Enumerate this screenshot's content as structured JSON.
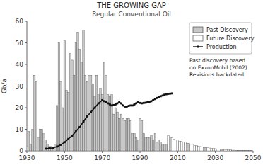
{
  "chart_data": {
    "type": "bar",
    "title": "THE GROWING GAP",
    "subtitle": "Regular Conventional Oil",
    "ylabel": "Gb/a",
    "annotation": "Past discovery based\non ExxonMobil (2002).\nRevisions backdated",
    "xlim": [
      1930,
      2050
    ],
    "ylim": [
      0,
      60
    ],
    "xticks": [
      1930,
      1950,
      1970,
      1990,
      2010,
      2030,
      2050
    ],
    "yticks": [
      0,
      10,
      20,
      30,
      40,
      50,
      60
    ],
    "legend": "upper right",
    "series": [
      {
        "name": "Past Discovery",
        "type": "bar",
        "color": "#c8c8c8",
        "x": [
          1930,
          1931,
          1932,
          1933,
          1934,
          1935,
          1936,
          1937,
          1938,
          1939,
          1940,
          1941,
          1942,
          1943,
          1944,
          1945,
          1946,
          1947,
          1948,
          1949,
          1950,
          1951,
          1952,
          1953,
          1954,
          1955,
          1956,
          1957,
          1958,
          1959,
          1960,
          1961,
          1962,
          1963,
          1964,
          1965,
          1966,
          1967,
          1968,
          1969,
          1970,
          1971,
          1972,
          1973,
          1974,
          1975,
          1976,
          1977,
          1978,
          1979,
          1980,
          1981,
          1982,
          1983,
          1984,
          1985,
          1986,
          1987,
          1988,
          1989,
          1990,
          1991,
          1992,
          1993,
          1994,
          1995,
          1996,
          1997,
          1998,
          1999,
          2000,
          2001,
          2002,
          2003,
          2004
        ],
        "values": [
          2,
          9,
          3,
          10,
          35,
          32,
          6,
          10,
          10,
          8,
          5,
          3,
          2,
          2,
          1,
          3,
          21,
          50,
          32,
          20,
          51,
          28,
          27,
          45,
          42,
          35,
          50,
          55,
          47,
          41,
          56,
          35,
          32,
          35,
          35,
          31,
          25,
          35,
          26,
          29,
          26,
          41,
          35,
          26,
          25,
          26,
          17,
          20,
          18,
          15,
          17,
          15,
          14,
          15,
          15,
          14,
          8,
          8,
          6,
          5,
          15,
          14,
          8,
          6,
          6,
          6,
          7,
          5,
          8,
          4,
          5,
          4,
          3,
          3,
          3
        ]
      },
      {
        "name": "Future Discovery",
        "type": "bar",
        "color": "#ffffff",
        "x": [
          2005,
          2006,
          2007,
          2008,
          2009,
          2010,
          2011,
          2012,
          2013,
          2014,
          2015,
          2016,
          2017,
          2018,
          2019,
          2020,
          2021,
          2022,
          2023,
          2024,
          2025,
          2026,
          2027,
          2028,
          2029,
          2030,
          2031,
          2032,
          2033,
          2034,
          2035,
          2036,
          2037,
          2038,
          2039,
          2040,
          2041,
          2042,
          2043,
          2044,
          2045,
          2046,
          2047,
          2048,
          2049
        ],
        "values": [
          7,
          6.5,
          6,
          5.5,
          5,
          5,
          4.5,
          4.5,
          4,
          4,
          3.5,
          3.5,
          3,
          3,
          2.5,
          2.5,
          2.2,
          2.0,
          1.8,
          1.6,
          1.5,
          1.4,
          1.3,
          1.2,
          1.1,
          1.0,
          0.9,
          0.8,
          0.7,
          0.6,
          0.5,
          0.5,
          0.4,
          0.4,
          0.3,
          0.3,
          0.2,
          0.2,
          0.2,
          0.1,
          0.1,
          0.1,
          0.1,
          0.1,
          0.1
        ]
      },
      {
        "name": "Production",
        "type": "line",
        "color": "#111111",
        "marker": "square",
        "x": [
          1940,
          1942,
          1944,
          1946,
          1948,
          1950,
          1952,
          1954,
          1956,
          1958,
          1960,
          1962,
          1964,
          1966,
          1968,
          1970,
          1971,
          1972,
          1973,
          1974,
          1975,
          1976,
          1977,
          1978,
          1979,
          1980,
          1981,
          1982,
          1983,
          1984,
          1985,
          1986,
          1987,
          1988,
          1989,
          1990,
          1991,
          1992,
          1993,
          1994,
          1995,
          1996,
          1997,
          1998,
          1999,
          2000,
          2001,
          2002,
          2003,
          2004,
          2005,
          2006,
          2007
        ],
        "values": [
          1.0,
          1.2,
          1.4,
          2.0,
          2.8,
          4.0,
          5.5,
          7.0,
          9.0,
          11.0,
          13.5,
          16.0,
          18.0,
          20.0,
          22.0,
          23.5,
          23.0,
          22.5,
          22.0,
          21.5,
          21.0,
          21.2,
          21.5,
          22.0,
          22.5,
          22.0,
          21.0,
          20.5,
          20.5,
          20.8,
          21.0,
          21.0,
          21.5,
          22.0,
          22.5,
          22.2,
          22.0,
          22.2,
          22.3,
          22.5,
          22.7,
          23.0,
          23.5,
          24.0,
          24.5,
          25.0,
          25.3,
          25.6,
          26.0,
          26.2,
          26.4,
          26.5,
          26.6
        ]
      }
    ]
  }
}
